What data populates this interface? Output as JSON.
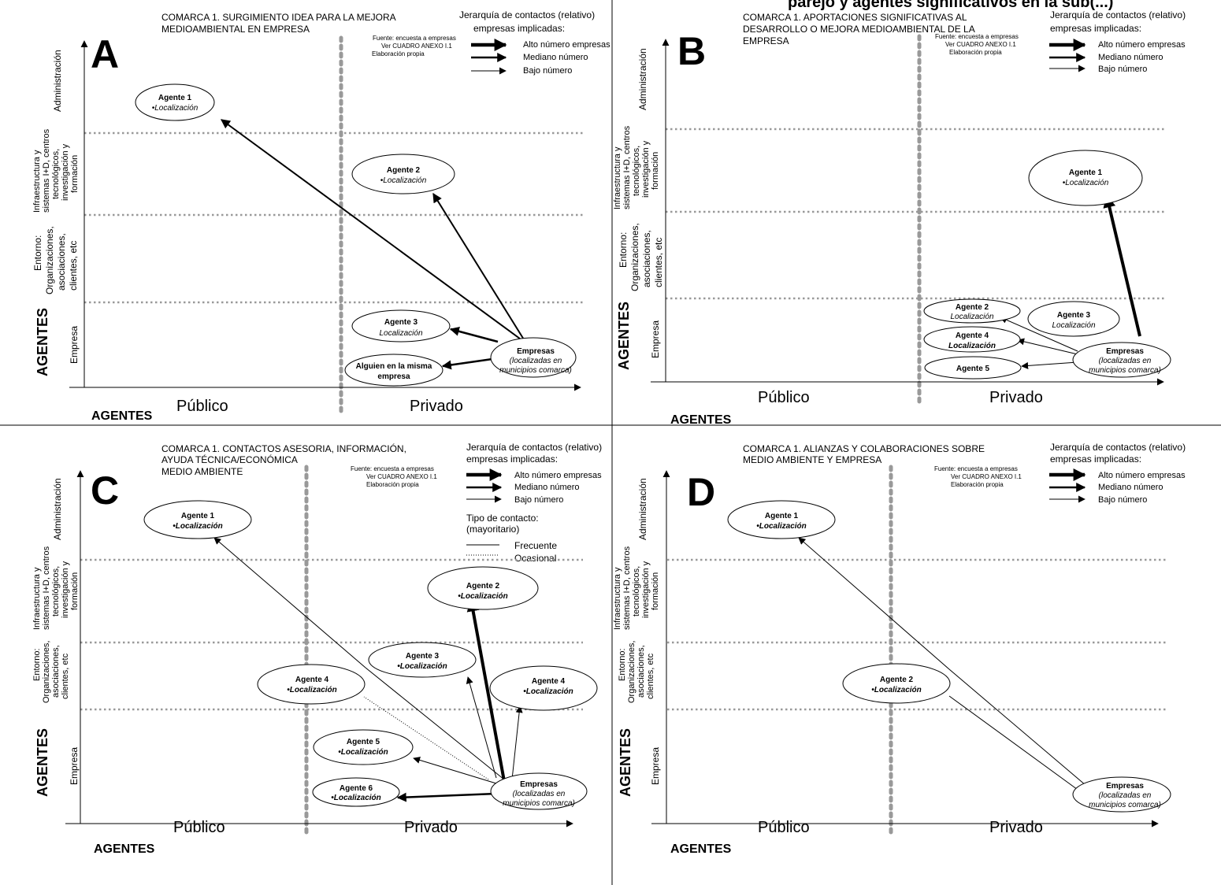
{
  "header_fragment": "parejo y agentes significativos en la sub(...)",
  "panel_a": {
    "letter": "A",
    "title_line1": "COMARCA 1. SURGIMIENTO IDEA PARA LA MEJORA",
    "title_line2": "MEDIOAMBIENTAL EN EMPRESA",
    "source_line1": "Fuente: encuesta a empresas",
    "source_line2": "Ver CUADRO ANEXO I.1",
    "source_line3": "Elaboración propia",
    "legend_title1": "Jerarquía de contactos (relativo)",
    "legend_title2": "empresas implicadas:",
    "legend_high": "Alto número empresas",
    "legend_medium": "Mediano número",
    "legend_low": "Bajo número",
    "y_admin": "Administración",
    "y_infra1": "Infraestructura y",
    "y_infra2": "sistemas I+D, centros",
    "y_infra3": "tecnológicos,",
    "y_infra4": "investigación y",
    "y_infra5": "formación",
    "y_entorno1": "Entorno:",
    "y_entorno2": "Organizaciones,",
    "y_entorno3": "asociaciones,",
    "y_entorno4": "clientes, etc",
    "y_empresa": "Empresa",
    "y_agentes": "AGENTES",
    "x_public": "Público",
    "x_private": "Privado",
    "x_agentes": "AGENTES",
    "n1_name": "Agente 1",
    "n1_loc": "•Localización",
    "n2_name": "Agente 2",
    "n2_loc": "•Localización",
    "n3_name": "Agente 3",
    "n3_loc": "Localización",
    "n4_line1": "Alguien en la misma",
    "n4_line2": "empresa",
    "emp_name": "Empresas",
    "emp_line1": "(localizadas en",
    "emp_line2": "municipios comarca)"
  },
  "panel_b": {
    "letter": "B",
    "title_line1": "COMARCA 1. APORTACIONES SIGNIFICATIVAS AL",
    "title_line2": "DESARROLLO O MEJORA MEDIOAMBIENTAL DE LA",
    "title_line3": "EMPRESA",
    "source_line1": "Fuente: encuesta a empresas",
    "source_line2": "Ver CUADRO ANEXO I.1",
    "source_line3": "Elaboración propia",
    "legend_title1": "Jerarquía de contactos (relativo)",
    "legend_title2": "empresas implicadas:",
    "legend_high": "Alto número empresas",
    "legend_medium": "Mediano número",
    "legend_low": "Bajo número",
    "y_admin": "Administración",
    "y_infra1": "Infraestructura y",
    "y_infra2": "sistemas I+D, centros",
    "y_infra3": "tecnológicos,",
    "y_infra4": "investigación y",
    "y_infra5": "formación",
    "y_entorno1": "Entorno:",
    "y_entorno2": "Organizaciones,",
    "y_entorno3": "asociaciones,",
    "y_entorno4": "clientes, etc",
    "y_empresa": "Empresa",
    "y_agentes": "AGENTES",
    "x_public": "Público",
    "x_private": "Privado",
    "x_agentes": "AGENTES",
    "n1_name": "Agente 1",
    "n1_loc": "•Localización",
    "n2_name": "Agente 2",
    "n2_loc": "Localización",
    "n3_name": "Agente 3",
    "n3_loc": "Localización",
    "n4_name": "Agente 4",
    "n4_loc": "Localización",
    "n5_name": "Agente 5",
    "emp_name": "Empresas",
    "emp_line1": "(localizadas en",
    "emp_line2": "municipios comarca)"
  },
  "panel_c": {
    "letter": "C",
    "title_line1": "COMARCA 1. CONTACTOS ASESORIA, INFORMACIÓN,",
    "title_line2": "AYUDA TÉCNICA/ECONÓMICA",
    "title_line3": "MEDIO AMBIENTE",
    "source_line1": "Fuente: encuesta a empresas",
    "source_line2": "Ver CUADRO ANEXO I.1",
    "source_line3": "Elaboración propia",
    "legend_title1": "Jerarquía de contactos (relativo)",
    "legend_title2": "empresas implicadas:",
    "legend_high": "Alto número empresas",
    "legend_medium": "Mediano número",
    "legend_low": "Bajo número",
    "type_title1": "Tipo de contacto:",
    "type_title2": "(mayoritario)",
    "type_frequent": "Frecuente",
    "type_occasional": "Ocasional",
    "y_admin": "Administración",
    "y_infra1": "Infraestructura y",
    "y_infra2": "sistemas I+D, centros",
    "y_infra3": "tecnológicos,",
    "y_infra4": "investigación y",
    "y_infra5": "formación",
    "y_entorno1": "Entorno:",
    "y_entorno2": "Organizaciones,",
    "y_entorno3": "asociaciones,",
    "y_entorno4": "clientes, etc",
    "y_empresa": "Empresa",
    "y_agentes": "AGENTES",
    "x_public": "Público",
    "x_private": "Privado",
    "x_agentes": "AGENTES",
    "n1_name": "Agente 1",
    "n1_loc": "•Localización",
    "n2_name": "Agente 2",
    "n2_loc": "•Localización",
    "n3_name": "Agente 3",
    "n3_loc": "•Localización",
    "n4a_name": "Agente 4",
    "n4a_loc": "•Localización",
    "n4b_name": "Agente 4",
    "n4b_loc": "•Localización",
    "n5_name": "Agente 5",
    "n5_loc": "•Localización",
    "n6_name": "Agente 6",
    "n6_loc": "•Localización",
    "emp_name": "Empresas",
    "emp_line1": "(localizadas en",
    "emp_line2": "municipios comarca)"
  },
  "panel_d": {
    "letter": "D",
    "title_line1": "COMARCA 1. ALIANZAS Y COLABORACIONES SOBRE",
    "title_line2": "MEDIO AMBIENTE Y EMPRESA",
    "source_line1": "Fuente: encuesta a empresas",
    "source_line2": "Ver CUADRO ANEXO I.1",
    "source_line3": "Elaboración propia",
    "legend_title1": "Jerarquía de contactos (relativo)",
    "legend_title2": "empresas implicadas:",
    "legend_high": "Alto número empresas",
    "legend_medium": "Mediano número",
    "legend_low": "Bajo número",
    "y_admin": "Administración",
    "y_infra1": "Infraestructura y",
    "y_infra2": "sistemas I+D, centros",
    "y_infra3": "tecnológicos,",
    "y_infra4": "investigación y",
    "y_infra5": "formación",
    "y_entorno1": "Entorno:",
    "y_entorno2": "Organizaciones,",
    "y_entorno3": "asociaciones,",
    "y_entorno4": "clientes, etc",
    "y_empresa": "Empresa",
    "y_agentes": "AGENTES",
    "x_public": "Público",
    "x_private": "Privado",
    "x_agentes": "AGENTES",
    "n1_name": "Agente 1",
    "n1_loc": "•Localización",
    "n2_name": "Agente 2",
    "n2_loc": "•Localización",
    "emp_name": "Empresas",
    "emp_line1": "(localizadas en",
    "emp_line2": "municipios comarca)"
  }
}
